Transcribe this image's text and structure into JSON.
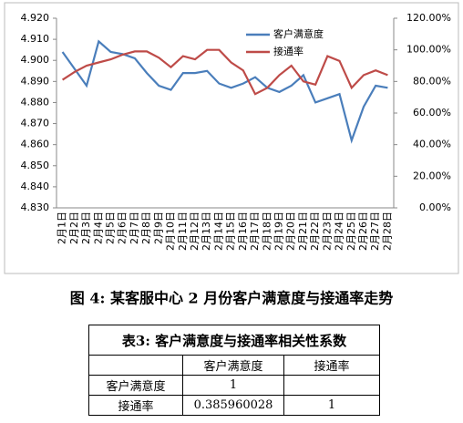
{
  "chart_data": {
    "type": "line",
    "categories": [
      "2月1日",
      "2月2日",
      "2月3日",
      "2月4日",
      "2月5日",
      "2月6日",
      "2月7日",
      "2月8日",
      "2月9日",
      "2月10日",
      "2月11日",
      "2月12日",
      "2月13日",
      "2月14日",
      "2月15日",
      "2月16日",
      "2月17日",
      "2月18日",
      "2月19日",
      "2月20日",
      "2月21日",
      "2月22日",
      "2月23日",
      "2月24日",
      "2月25日",
      "2月26日",
      "2月27日",
      "2月28日"
    ],
    "series": [
      {
        "name": "客户满意度",
        "color": "#4a7ebb",
        "values": [
          4.904,
          4.896,
          4.888,
          4.909,
          4.904,
          4.903,
          4.901,
          4.894,
          4.888,
          4.886,
          4.894,
          4.894,
          4.895,
          4.889,
          4.887,
          4.889,
          4.892,
          4.887,
          4.885,
          4.888,
          4.893,
          4.88,
          4.882,
          4.884,
          4.862,
          4.878,
          4.888,
          4.887
        ]
      },
      {
        "name": "接通率",
        "color": "#be4b48",
        "axis": "y2",
        "values": [
          81,
          86,
          90,
          92,
          94,
          97,
          99,
          99,
          95,
          89,
          96,
          94,
          100,
          100,
          92,
          87,
          72,
          76,
          84,
          90,
          80,
          78,
          96,
          93,
          76,
          84,
          87,
          84
        ]
      }
    ],
    "ylim": [
      4.83,
      4.92
    ],
    "yticks": [
      {
        "value": 4.83,
        "label": "4.830"
      },
      {
        "value": 4.84,
        "label": "4.840"
      },
      {
        "value": 4.85,
        "label": "4.850"
      },
      {
        "value": 4.86,
        "label": "4.860"
      },
      {
        "value": 4.87,
        "label": "4.870"
      },
      {
        "value": 4.88,
        "label": "4.880"
      },
      {
        "value": 4.89,
        "label": "4.890"
      },
      {
        "value": 4.9,
        "label": "4.900"
      },
      {
        "value": 4.91,
        "label": "4.910"
      },
      {
        "value": 4.92,
        "label": "4.920"
      }
    ],
    "y2lim": [
      0,
      120
    ],
    "y2ticks": [
      {
        "value": 0,
        "label": "0.00%"
      },
      {
        "value": 20,
        "label": "20.00%"
      },
      {
        "value": 40,
        "label": "40.00%"
      },
      {
        "value": 60,
        "label": "60.00%"
      },
      {
        "value": 80,
        "label": "80.00%"
      },
      {
        "value": 100,
        "label": "100.00%"
      },
      {
        "value": 120,
        "label": "120.00%"
      }
    ],
    "grid": false
  },
  "caption": "图 4: 某客服中心 2 月份客户满意度与接通率走势",
  "table": {
    "title": "表3: 客户满意度与接通率相关性系数",
    "header": [
      "客户满意度",
      "接通率"
    ],
    "rows": [
      [
        "客户满意度",
        "1"
      ],
      [
        "接通率",
        "0.385960028",
        "1"
      ]
    ]
  }
}
